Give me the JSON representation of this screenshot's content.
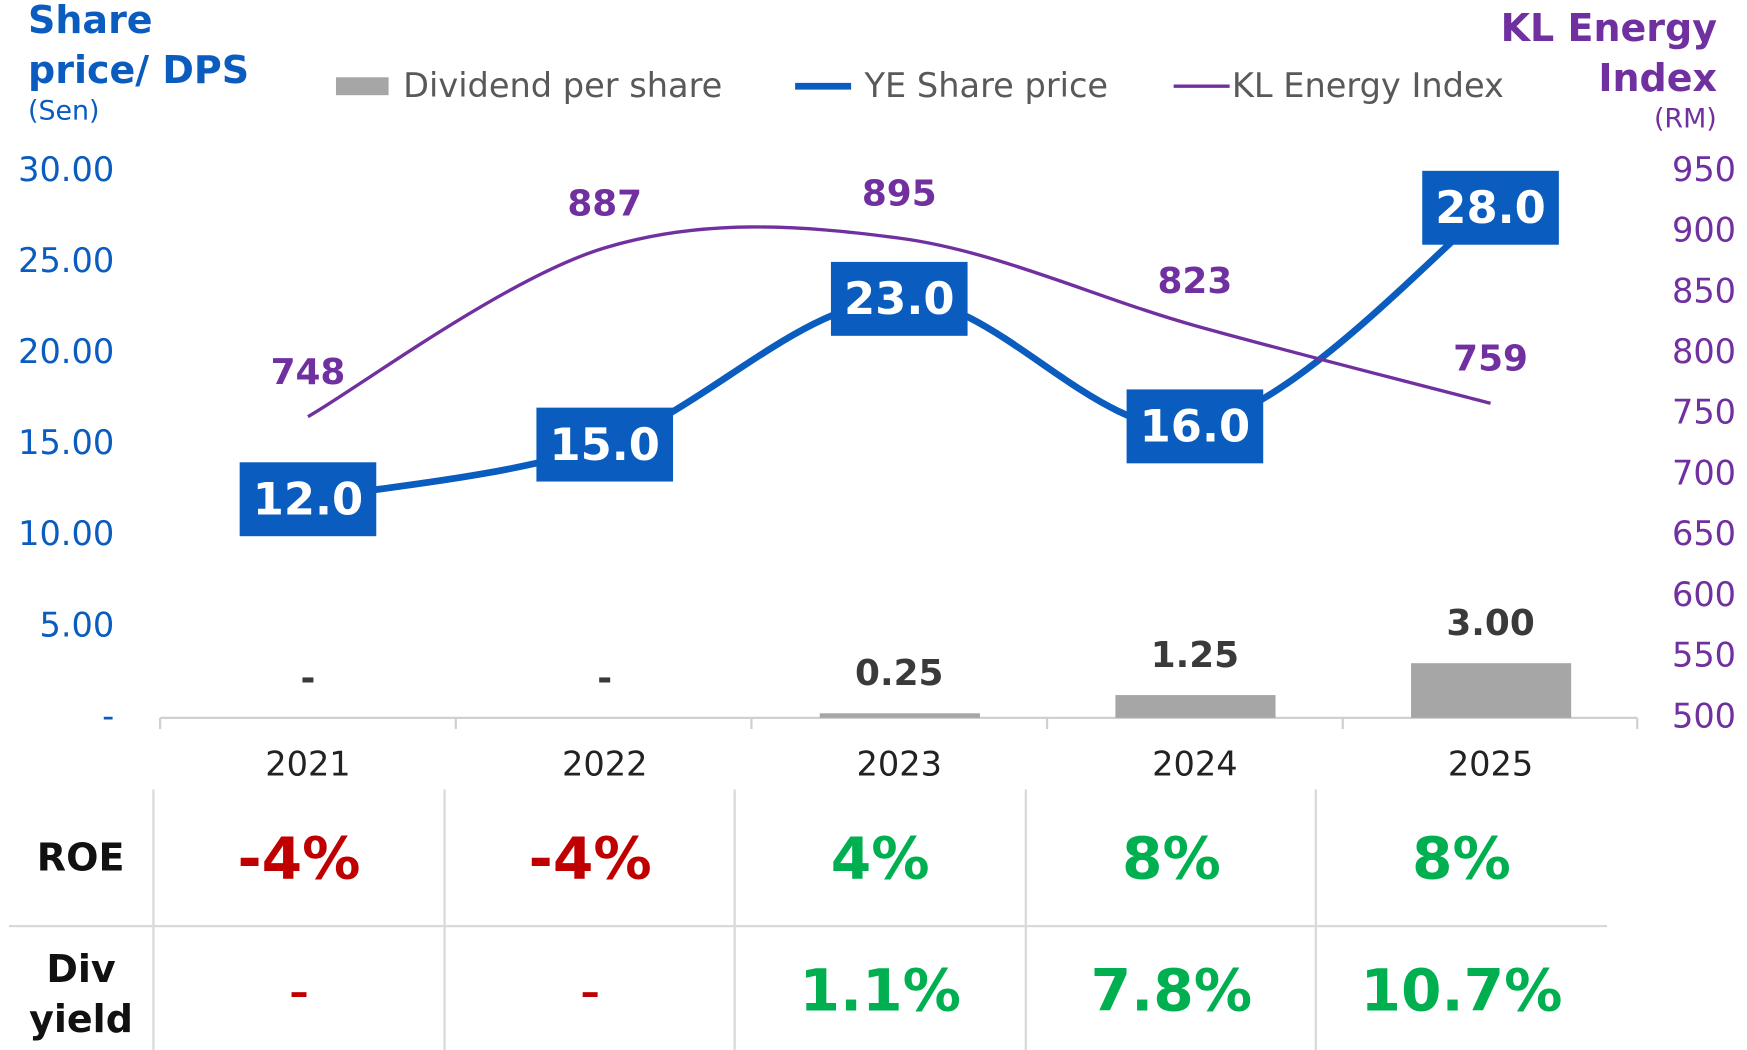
{
  "chart_data": {
    "type": "combo",
    "left_axis_title": "Share price/ DPS",
    "left_axis_unit": "(Sen)",
    "right_axis_title": "KL Energy Index",
    "right_axis_unit": "(RM)",
    "categories": [
      "2021",
      "2022",
      "2023",
      "2024",
      "2025"
    ],
    "series": [
      {
        "name": "Dividend per share",
        "type": "bar",
        "color": "#a6a6a6",
        "values": [
          0,
          0,
          0.25,
          1.25,
          3
        ],
        "value_labels": [
          "-",
          "-",
          "0.25",
          "1.25",
          "3.00"
        ]
      },
      {
        "name": "YE Share price",
        "type": "line",
        "color": "#0a5cbf",
        "values": [
          12,
          15,
          23,
          16,
          28
        ],
        "value_labels": [
          "12.0",
          "15.0",
          "23.0",
          "16.0",
          "28.0"
        ]
      },
      {
        "name": "KL Energy Index",
        "type": "line",
        "axis": "y2",
        "color": "#7030a0",
        "values": [
          748,
          887,
          895,
          823,
          759
        ]
      }
    ],
    "ylim": [
      0,
      30
    ],
    "yticks": [
      {
        "value": 0,
        "label": "-"
      },
      {
        "value": 5,
        "label": "5.00"
      },
      {
        "value": 10,
        "label": "10.00"
      },
      {
        "value": 15,
        "label": "15.00"
      },
      {
        "value": 20,
        "label": "20.00"
      },
      {
        "value": 25,
        "label": "25.00"
      },
      {
        "value": 30,
        "label": "30.00"
      }
    ],
    "y2lim": [
      500,
      950
    ],
    "y2ticks": [
      500,
      550,
      600,
      650,
      700,
      750,
      800,
      850,
      900,
      950
    ]
  },
  "table": {
    "rows": [
      {
        "label": "ROE",
        "values": [
          "-4%",
          "-4%",
          "4%",
          "8%",
          "8%"
        ]
      },
      {
        "label": "Div yield",
        "values": [
          "–",
          "–",
          "1.1%",
          "7.8%",
          "10.7%"
        ]
      }
    ]
  }
}
